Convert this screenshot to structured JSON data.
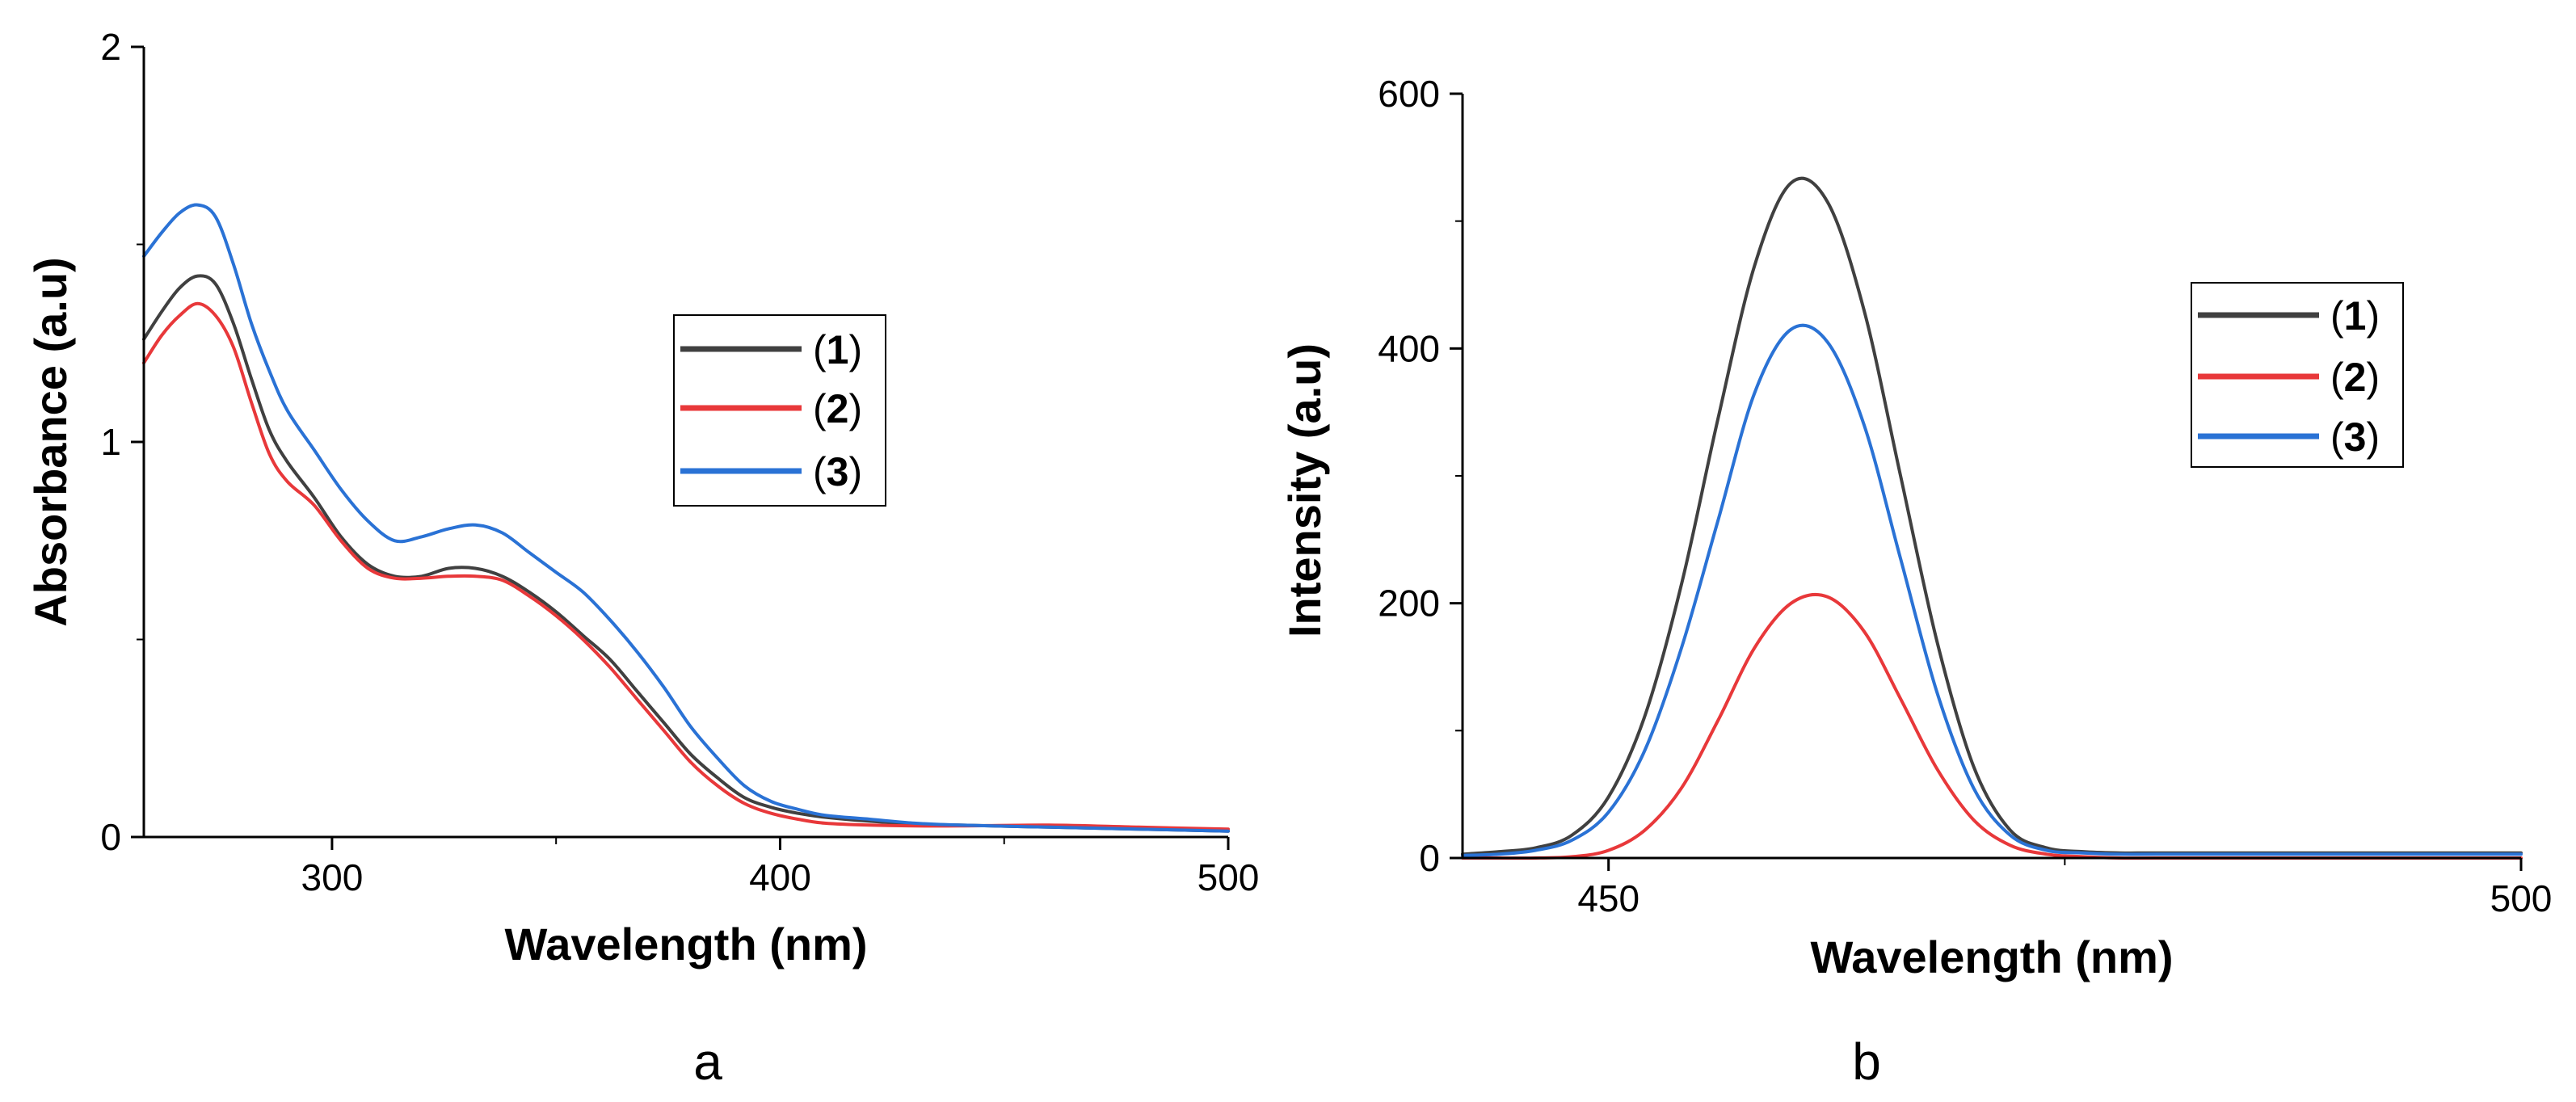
{
  "colors": {
    "series1": "#404040",
    "series2": "#e8383a",
    "series3": "#2a72d5",
    "axis": "#000000"
  },
  "chart_data": [
    {
      "type": "line",
      "panel_label": "a",
      "xlabel": "Wavelength (nm)",
      "ylabel": "Absorbance (a.u)",
      "xlim": [
        258,
        500
      ],
      "ylim": [
        0,
        2
      ],
      "xticks": [
        300,
        400,
        500
      ],
      "yticks": [
        0,
        1,
        2
      ],
      "grid": false,
      "legend_position": "center-right",
      "series": [
        {
          "name": "1",
          "label_open": "(",
          "label_num": "1",
          "label_close": ")",
          "x": [
            258,
            262,
            266,
            270,
            274,
            278,
            282,
            286,
            290,
            296,
            302,
            308,
            314,
            320,
            326,
            332,
            338,
            344,
            350,
            356,
            362,
            368,
            374,
            380,
            386,
            392,
            398,
            404,
            410,
            420,
            430,
            440,
            460,
            480,
            500
          ],
          "y": [
            1.26,
            1.33,
            1.39,
            1.42,
            1.4,
            1.3,
            1.16,
            1.03,
            0.95,
            0.86,
            0.76,
            0.69,
            0.66,
            0.66,
            0.68,
            0.68,
            0.66,
            0.62,
            0.57,
            0.51,
            0.45,
            0.37,
            0.29,
            0.21,
            0.15,
            0.1,
            0.075,
            0.06,
            0.05,
            0.04,
            0.033,
            0.03,
            0.025,
            0.02,
            0.015
          ]
        },
        {
          "name": "2",
          "label_open": "(",
          "label_num": "2",
          "label_close": ")",
          "x": [
            258,
            262,
            266,
            270,
            274,
            278,
            282,
            286,
            290,
            296,
            302,
            308,
            314,
            320,
            326,
            332,
            338,
            344,
            350,
            356,
            362,
            368,
            374,
            380,
            386,
            392,
            398,
            404,
            410,
            420,
            430,
            440,
            460,
            480,
            500
          ],
          "y": [
            1.2,
            1.27,
            1.32,
            1.35,
            1.32,
            1.24,
            1.1,
            0.97,
            0.9,
            0.84,
            0.75,
            0.68,
            0.655,
            0.655,
            0.66,
            0.66,
            0.65,
            0.61,
            0.56,
            0.5,
            0.43,
            0.35,
            0.27,
            0.19,
            0.13,
            0.085,
            0.06,
            0.045,
            0.035,
            0.03,
            0.028,
            0.028,
            0.03,
            0.025,
            0.02
          ]
        },
        {
          "name": "3",
          "label_open": "(",
          "label_num": "3",
          "label_close": ")",
          "x": [
            258,
            262,
            266,
            270,
            274,
            278,
            282,
            286,
            290,
            296,
            302,
            308,
            314,
            320,
            326,
            332,
            338,
            344,
            350,
            356,
            362,
            368,
            374,
            380,
            386,
            392,
            398,
            404,
            410,
            420,
            430,
            440,
            460,
            480,
            500
          ],
          "y": [
            1.47,
            1.53,
            1.58,
            1.6,
            1.57,
            1.45,
            1.3,
            1.18,
            1.08,
            0.98,
            0.88,
            0.8,
            0.75,
            0.76,
            0.78,
            0.79,
            0.77,
            0.72,
            0.67,
            0.62,
            0.55,
            0.47,
            0.38,
            0.28,
            0.2,
            0.13,
            0.09,
            0.07,
            0.055,
            0.045,
            0.035,
            0.03,
            0.025,
            0.02,
            0.015
          ]
        }
      ]
    },
    {
      "type": "line",
      "panel_label": "b",
      "xlabel": "Wavelength (nm)",
      "ylabel": "Intensity (a.u)",
      "xlim": [
        442,
        500
      ],
      "ylim": [
        0,
        600
      ],
      "xticks": [
        450,
        500
      ],
      "yticks": [
        0,
        200,
        400,
        600
      ],
      "grid": false,
      "legend_position": "center-right",
      "series": [
        {
          "name": "1",
          "label_open": "(",
          "label_num": "1",
          "label_close": ")",
          "x": [
            442,
            444,
            446,
            448,
            450,
            452,
            454,
            456,
            458,
            460,
            462,
            464,
            466,
            468,
            470,
            472,
            474,
            476,
            478,
            480,
            485,
            490,
            495,
            500
          ],
          "y": [
            3,
            5,
            8,
            18,
            48,
            112,
            215,
            345,
            465,
            530,
            515,
            430,
            300,
            170,
            72,
            22,
            8,
            5,
            4,
            4,
            4,
            4,
            4,
            4
          ]
        },
        {
          "name": "2",
          "label_open": "(",
          "label_num": "2",
          "label_close": ")",
          "x": [
            442,
            444,
            446,
            448,
            450,
            452,
            454,
            456,
            458,
            460,
            462,
            464,
            466,
            468,
            470,
            472,
            474,
            476,
            478,
            480,
            485,
            490,
            495,
            500
          ],
          "y": [
            0,
            0,
            0,
            1,
            6,
            22,
            55,
            108,
            165,
            200,
            205,
            178,
            125,
            70,
            30,
            10,
            3,
            1,
            0,
            0,
            0,
            0,
            0,
            0
          ]
        },
        {
          "name": "3",
          "label_open": "(",
          "label_num": "3",
          "label_close": ")",
          "x": [
            442,
            444,
            446,
            448,
            450,
            452,
            454,
            456,
            458,
            460,
            462,
            464,
            466,
            468,
            470,
            472,
            474,
            476,
            478,
            480,
            485,
            490,
            495,
            500
          ],
          "y": [
            2,
            3,
            6,
            14,
            36,
            85,
            165,
            265,
            365,
            415,
            405,
            340,
            235,
            130,
            55,
            18,
            6,
            4,
            3,
            3,
            3,
            3,
            3,
            3
          ]
        }
      ]
    }
  ]
}
